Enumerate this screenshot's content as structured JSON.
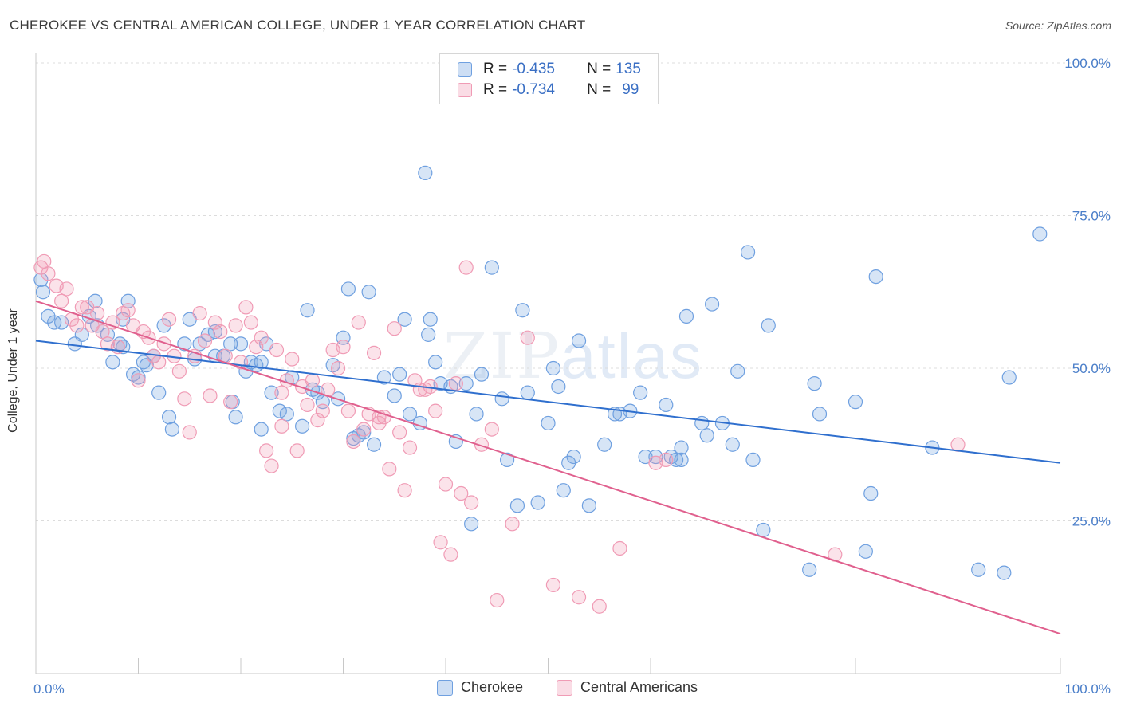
{
  "title": "CHEROKEE VS CENTRAL AMERICAN COLLEGE, UNDER 1 YEAR CORRELATION CHART",
  "source": "Source: ZipAtlas.com",
  "watermark": {
    "zip": "ZIP",
    "atlas": "atlas"
  },
  "legend": {
    "rows": [
      {
        "r_label": "R = ",
        "r_value": "-0.435",
        "n_label": "N = ",
        "n_value": "135",
        "color": "#6fa0e0"
      },
      {
        "r_label": "R = ",
        "r_value": "-0.734",
        "n_label": "N = ",
        "n_value": "99",
        "color": "#f09bb5"
      }
    ]
  },
  "bottom_legend": [
    {
      "label": "Cherokee",
      "color": "#6fa0e0"
    },
    {
      "label": "Central Americans",
      "color": "#f09bb5"
    }
  ],
  "chart_data": {
    "type": "scatter",
    "title": "CHEROKEE VS CENTRAL AMERICAN COLLEGE, UNDER 1 YEAR CORRELATION CHART",
    "xlabel": "",
    "ylabel": "College, Under 1 year",
    "xlim": [
      0,
      100
    ],
    "ylim": [
      0,
      100
    ],
    "x_tick_labels": [
      "0.0%",
      "100.0%"
    ],
    "y_tick_labels": [
      "25.0%",
      "50.0%",
      "75.0%",
      "100.0%"
    ],
    "y_ticks": [
      25,
      50,
      75,
      100
    ],
    "grid": "horizontal dashed",
    "legend_position": "top-center",
    "series": [
      {
        "name": "Cherokee",
        "color": "#6fa0e0",
        "line_color": "#2f6fce",
        "trend": {
          "x": [
            0,
            100
          ],
          "y": [
            54.5,
            34.5
          ]
        },
        "points": [
          [
            0.5,
            64.5
          ],
          [
            0.7,
            62.5
          ],
          [
            1.2,
            58.5
          ],
          [
            1.8,
            57.5
          ],
          [
            2.5,
            57.5
          ],
          [
            3.8,
            54.0
          ],
          [
            4.5,
            55.5
          ],
          [
            5.2,
            58.5
          ],
          [
            6.0,
            57.0
          ],
          [
            5.8,
            61.0
          ],
          [
            7.0,
            55.5
          ],
          [
            7.5,
            51.0
          ],
          [
            8.2,
            54.0
          ],
          [
            8.5,
            58.0
          ],
          [
            8.5,
            53.5
          ],
          [
            9.0,
            61.0
          ],
          [
            9.5,
            49.0
          ],
          [
            10.0,
            48.5
          ],
          [
            10.5,
            51.0
          ],
          [
            10.8,
            50.5
          ],
          [
            11.5,
            52.0
          ],
          [
            12.0,
            46.0
          ],
          [
            12.5,
            57.0
          ],
          [
            13.0,
            42.0
          ],
          [
            13.3,
            40.0
          ],
          [
            14.5,
            54.0
          ],
          [
            15.0,
            58.0
          ],
          [
            15.5,
            51.5
          ],
          [
            16.0,
            54.0
          ],
          [
            16.8,
            55.5
          ],
          [
            17.5,
            52.0
          ],
          [
            17.5,
            56.0
          ],
          [
            18.3,
            52.0
          ],
          [
            19.0,
            54.0
          ],
          [
            19.2,
            44.5
          ],
          [
            19.5,
            42.0
          ],
          [
            20.0,
            54.0
          ],
          [
            20.5,
            49.5
          ],
          [
            21.0,
            51.0
          ],
          [
            21.5,
            50.5
          ],
          [
            22.0,
            51.0
          ],
          [
            22.5,
            54.0
          ],
          [
            22.0,
            40.0
          ],
          [
            23.0,
            46.0
          ],
          [
            23.8,
            43.0
          ],
          [
            24.5,
            42.5
          ],
          [
            25.0,
            48.5
          ],
          [
            26.0,
            40.5
          ],
          [
            26.5,
            59.5
          ],
          [
            27.0,
            46.5
          ],
          [
            27.5,
            46.0
          ],
          [
            28.0,
            44.5
          ],
          [
            29.0,
            50.5
          ],
          [
            29.5,
            45.0
          ],
          [
            30.0,
            55.0
          ],
          [
            30.5,
            63.0
          ],
          [
            31.0,
            38.5
          ],
          [
            31.5,
            39.0
          ],
          [
            32.0,
            39.5
          ],
          [
            32.5,
            62.5
          ],
          [
            33.0,
            37.5
          ],
          [
            34.0,
            48.5
          ],
          [
            35.0,
            45.5
          ],
          [
            35.5,
            49.0
          ],
          [
            36.0,
            58.0
          ],
          [
            36.5,
            42.5
          ],
          [
            37.5,
            41.0
          ],
          [
            38.0,
            82.0
          ],
          [
            38.3,
            55.5
          ],
          [
            38.5,
            58.0
          ],
          [
            39.0,
            51.0
          ],
          [
            39.5,
            47.5
          ],
          [
            40.5,
            47.0
          ],
          [
            41.0,
            38.0
          ],
          [
            42.0,
            47.5
          ],
          [
            42.5,
            24.5
          ],
          [
            43.0,
            42.5
          ],
          [
            43.5,
            49.0
          ],
          [
            44.5,
            66.5
          ],
          [
            45.5,
            45.0
          ],
          [
            46.0,
            35.0
          ],
          [
            47.0,
            27.5
          ],
          [
            47.5,
            59.5
          ],
          [
            48.0,
            46.0
          ],
          [
            49.0,
            28.0
          ],
          [
            50.0,
            41.0
          ],
          [
            50.5,
            50.0
          ],
          [
            51.0,
            47.0
          ],
          [
            51.5,
            30.0
          ],
          [
            52.0,
            34.5
          ],
          [
            52.5,
            35.5
          ],
          [
            53.0,
            54.5
          ],
          [
            54.0,
            27.5
          ],
          [
            55.5,
            37.5
          ],
          [
            56.5,
            42.5
          ],
          [
            57.0,
            42.5
          ],
          [
            58.0,
            43.0
          ],
          [
            59.0,
            46.0
          ],
          [
            59.5,
            35.5
          ],
          [
            60.5,
            35.5
          ],
          [
            61.5,
            44.0
          ],
          [
            62.0,
            35.5
          ],
          [
            63.0,
            37.0
          ],
          [
            63.5,
            58.5
          ],
          [
            65.0,
            41.0
          ],
          [
            65.5,
            39.0
          ],
          [
            66.0,
            60.5
          ],
          [
            67.0,
            41.0
          ],
          [
            68.0,
            37.5
          ],
          [
            68.5,
            49.5
          ],
          [
            69.5,
            69.0
          ],
          [
            70.0,
            35.0
          ],
          [
            71.0,
            23.5
          ],
          [
            71.5,
            57.0
          ],
          [
            75.5,
            17.0
          ],
          [
            76.0,
            47.5
          ],
          [
            76.5,
            42.5
          ],
          [
            80.0,
            44.5
          ],
          [
            81.0,
            20.0
          ],
          [
            81.5,
            29.5
          ],
          [
            82.0,
            65.0
          ],
          [
            98.0,
            72.0
          ],
          [
            95.0,
            48.5
          ],
          [
            92.0,
            17.0
          ],
          [
            94.5,
            16.5
          ],
          [
            87.5,
            37.0
          ],
          [
            63.0,
            35.0
          ],
          [
            62.5,
            35.0
          ]
        ]
      },
      {
        "name": "Central Americans",
        "color": "#f09bb5",
        "line_color": "#e0608e",
        "trend": {
          "x": [
            0,
            100
          ],
          "y": [
            61.0,
            6.5
          ]
        },
        "points": [
          [
            0.5,
            66.5
          ],
          [
            0.8,
            67.5
          ],
          [
            1.2,
            65.5
          ],
          [
            2.0,
            63.5
          ],
          [
            2.5,
            61.0
          ],
          [
            3.0,
            63.0
          ],
          [
            3.5,
            58.0
          ],
          [
            4.0,
            57.0
          ],
          [
            4.5,
            60.0
          ],
          [
            5.0,
            60.0
          ],
          [
            5.5,
            57.0
          ],
          [
            6.0,
            59.0
          ],
          [
            6.5,
            56.0
          ],
          [
            7.0,
            54.0
          ],
          [
            7.5,
            57.5
          ],
          [
            8.0,
            53.5
          ],
          [
            8.5,
            59.0
          ],
          [
            9.0,
            59.5
          ],
          [
            9.5,
            57.0
          ],
          [
            10.0,
            48.0
          ],
          [
            10.5,
            56.0
          ],
          [
            11.0,
            55.0
          ],
          [
            11.5,
            52.0
          ],
          [
            12.0,
            51.0
          ],
          [
            12.5,
            54.0
          ],
          [
            13.0,
            58.0
          ],
          [
            13.5,
            52.0
          ],
          [
            14.0,
            49.5
          ],
          [
            14.5,
            45.0
          ],
          [
            15.0,
            39.5
          ],
          [
            15.5,
            52.0
          ],
          [
            16.0,
            59.0
          ],
          [
            16.5,
            54.5
          ],
          [
            17.0,
            45.5
          ],
          [
            17.5,
            57.5
          ],
          [
            18.0,
            56.0
          ],
          [
            18.5,
            52.0
          ],
          [
            19.0,
            44.5
          ],
          [
            19.5,
            57.0
          ],
          [
            20.0,
            51.0
          ],
          [
            20.5,
            60.0
          ],
          [
            21.0,
            57.5
          ],
          [
            21.5,
            53.5
          ],
          [
            22.0,
            55.0
          ],
          [
            22.5,
            36.5
          ],
          [
            23.0,
            34.0
          ],
          [
            23.5,
            53.0
          ],
          [
            24.0,
            40.5
          ],
          [
            24.5,
            48.0
          ],
          [
            25.0,
            51.5
          ],
          [
            25.5,
            36.5
          ],
          [
            26.0,
            47.0
          ],
          [
            26.5,
            44.0
          ],
          [
            27.0,
            48.0
          ],
          [
            27.5,
            41.5
          ],
          [
            28.0,
            43.0
          ],
          [
            28.5,
            46.5
          ],
          [
            29.0,
            53.0
          ],
          [
            29.5,
            50.0
          ],
          [
            30.0,
            53.5
          ],
          [
            30.5,
            43.0
          ],
          [
            31.0,
            38.0
          ],
          [
            31.5,
            57.5
          ],
          [
            32.0,
            40.0
          ],
          [
            32.5,
            42.5
          ],
          [
            33.0,
            52.5
          ],
          [
            33.5,
            41.0
          ],
          [
            34.0,
            42.0
          ],
          [
            34.5,
            33.5
          ],
          [
            35.0,
            56.5
          ],
          [
            35.5,
            39.5
          ],
          [
            36.0,
            30.0
          ],
          [
            36.5,
            37.0
          ],
          [
            37.0,
            48.0
          ],
          [
            37.5,
            46.5
          ],
          [
            38.0,
            46.5
          ],
          [
            38.5,
            47.0
          ],
          [
            39.0,
            43.0
          ],
          [
            39.5,
            21.5
          ],
          [
            40.0,
            31.0
          ],
          [
            40.5,
            19.5
          ],
          [
            41.0,
            47.5
          ],
          [
            41.5,
            29.5
          ],
          [
            42.0,
            66.5
          ],
          [
            42.5,
            28.0
          ],
          [
            43.5,
            37.5
          ],
          [
            44.5,
            40.0
          ],
          [
            45.0,
            12.0
          ],
          [
            46.5,
            24.5
          ],
          [
            48.0,
            55.0
          ],
          [
            50.5,
            14.5
          ],
          [
            53.0,
            12.5
          ],
          [
            55.0,
            11.0
          ],
          [
            57.0,
            20.5
          ],
          [
            60.5,
            34.5
          ],
          [
            61.5,
            35.0
          ],
          [
            78.0,
            19.5
          ],
          [
            90.0,
            37.5
          ],
          [
            33.5,
            42.0
          ],
          [
            24.0,
            46.0
          ]
        ]
      }
    ]
  }
}
